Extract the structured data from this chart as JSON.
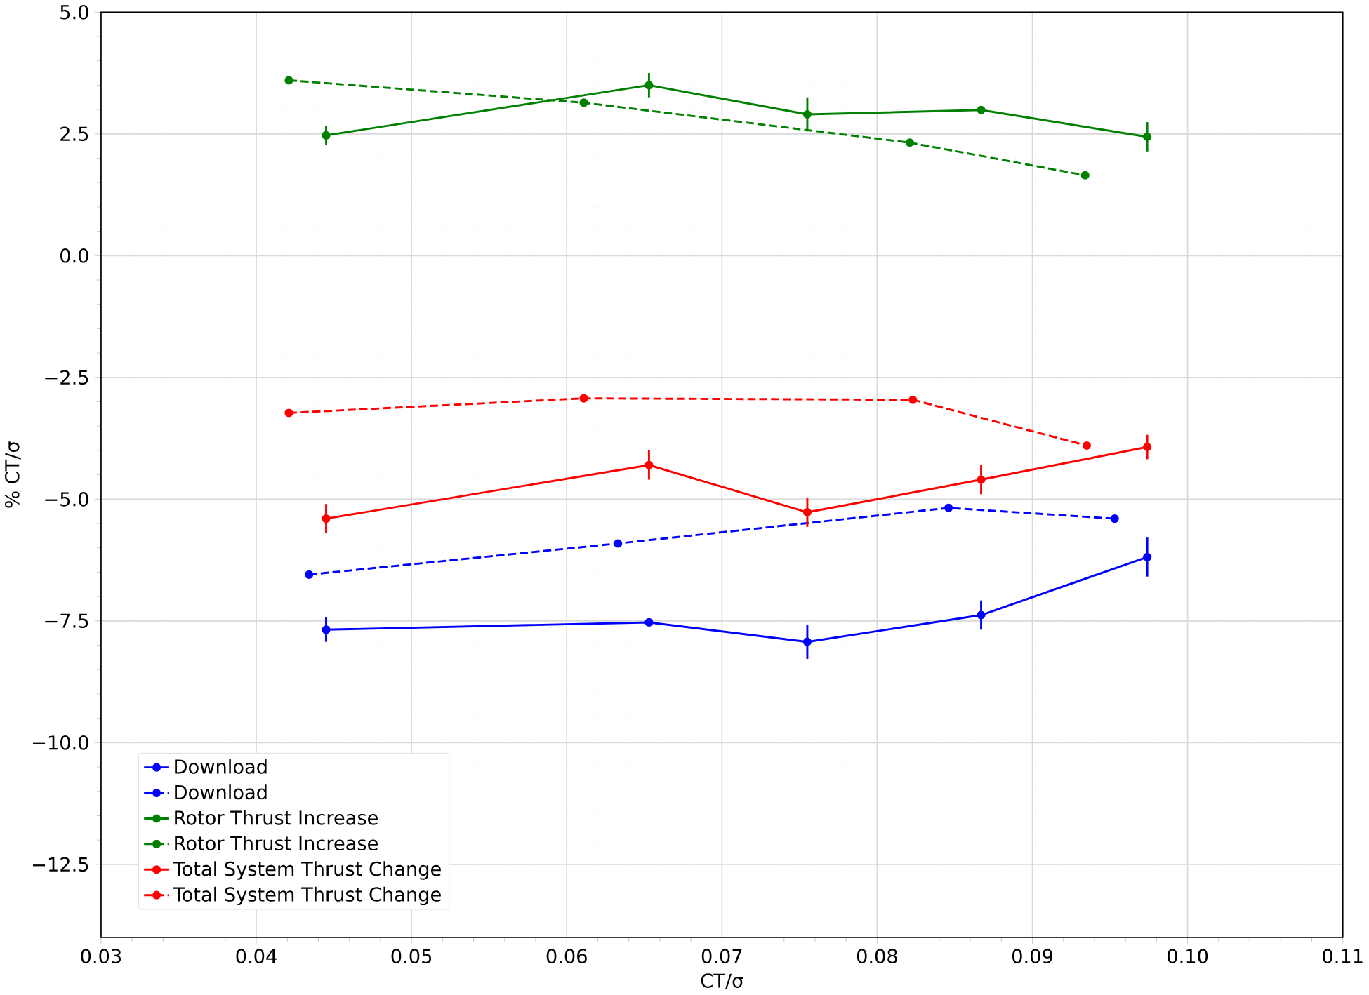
{
  "chart_data": {
    "type": "line",
    "xlabel": "CT/σ",
    "ylabel": "% CT/σ",
    "xlim": [
      0.03,
      0.11
    ],
    "ylim": [
      -14,
      5
    ],
    "xticks": [
      {
        "value": 0.03,
        "label": "0.03"
      },
      {
        "value": 0.04,
        "label": "0.04"
      },
      {
        "value": 0.05,
        "label": "0.05"
      },
      {
        "value": 0.06,
        "label": "0.06"
      },
      {
        "value": 0.07,
        "label": "0.07"
      },
      {
        "value": 0.08,
        "label": "0.08"
      },
      {
        "value": 0.09,
        "label": "0.09"
      },
      {
        "value": 0.1,
        "label": "0.10"
      },
      {
        "value": 0.11,
        "label": "0.11"
      }
    ],
    "yticks": [
      {
        "value": -12.5,
        "label": "−12.5"
      },
      {
        "value": -10,
        "label": "−10.0"
      },
      {
        "value": -7.5,
        "label": "−7.5"
      },
      {
        "value": -5,
        "label": "−5.0"
      },
      {
        "value": -2.5,
        "label": "−2.5"
      },
      {
        "value": 0,
        "label": "0.0"
      },
      {
        "value": 2.5,
        "label": "2.5"
      },
      {
        "value": 5,
        "label": "5.0"
      }
    ],
    "grid": true,
    "legend": "bottom left",
    "marker": "circle",
    "series": [
      {
        "name": "Download",
        "color": "#0000ff",
        "line_style": "solid",
        "x": [
          0.0445,
          0.0653,
          0.0755,
          0.0867,
          0.0974
        ],
        "values": [
          -7.68,
          -7.53,
          -7.93,
          -7.38,
          -6.19
        ],
        "errors": [
          0.25,
          null,
          0.35,
          0.3,
          0.4
        ]
      },
      {
        "name": "Download",
        "color": "#0000ff",
        "line_style": "dashed",
        "x": [
          0.0434,
          0.0633,
          0.0846,
          0.0953
        ],
        "values": [
          -6.55,
          -5.91,
          -5.18,
          -5.4
        ]
      },
      {
        "name": "Rotor Thrust Increase",
        "color": "#008000",
        "line_style": "solid",
        "x": [
          0.0445,
          0.0653,
          0.0755,
          0.0867,
          0.0974
        ],
        "values": [
          2.47,
          3.5,
          2.9,
          2.99,
          2.44
        ],
        "errors": [
          0.2,
          0.25,
          0.35,
          null,
          0.3
        ]
      },
      {
        "name": "Rotor Thrust Increase",
        "color": "#008000",
        "line_style": "dashed",
        "x": [
          0.0421,
          0.0611,
          0.0821,
          0.0934
        ],
        "values": [
          3.6,
          3.14,
          2.32,
          1.65
        ]
      },
      {
        "name": "Total System Thrust Change",
        "color": "#ff0000",
        "line_style": "solid",
        "x": [
          0.0445,
          0.0653,
          0.0755,
          0.0867,
          0.0974
        ],
        "values": [
          -5.4,
          -4.3,
          -5.27,
          -4.6,
          -3.93
        ],
        "errors": [
          0.3,
          0.3,
          0.3,
          0.3,
          0.25
        ]
      },
      {
        "name": "Total System Thrust Change",
        "color": "#ff0000",
        "line_style": "dashed",
        "x": [
          0.0421,
          0.0611,
          0.0823,
          0.0935
        ],
        "values": [
          -3.23,
          -2.93,
          -2.96,
          -3.9
        ]
      }
    ]
  }
}
